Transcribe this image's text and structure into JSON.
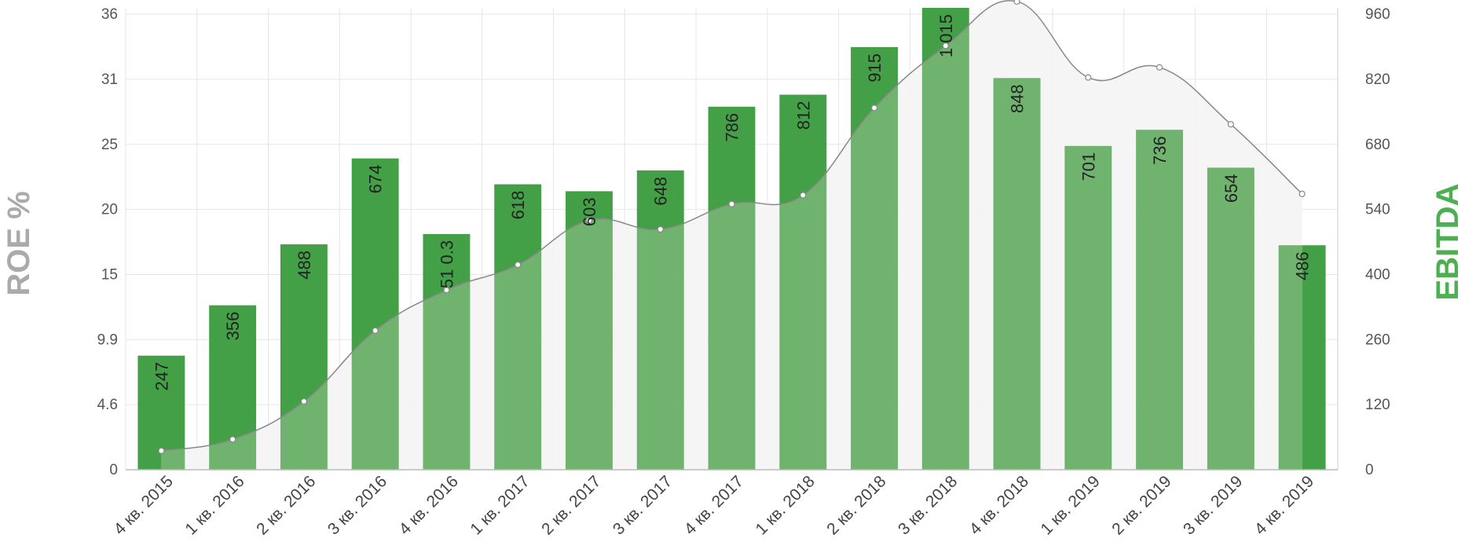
{
  "chart_data": {
    "type": "bar",
    "categories": [
      "4 кв. 2015",
      "1 кв. 2016",
      "2 кв. 2016",
      "3 кв. 2016",
      "4 кв. 2016",
      "1 кв. 2017",
      "2 кв. 2017",
      "3 кв. 2017",
      "4 кв. 2017",
      "1 кв. 2018",
      "2 кв. 2018",
      "3 кв. 2018",
      "4 кв. 2018",
      "1 кв. 2019",
      "2 кв. 2019",
      "3 кв. 2019",
      "4 кв. 2019"
    ],
    "series": [
      {
        "name": "EBITDA",
        "type": "bar",
        "axis": "right",
        "values": [
          247,
          356,
          488,
          674,
          510.3,
          618,
          603,
          648,
          786,
          812,
          915,
          1015,
          848,
          701,
          736,
          654,
          486
        ],
        "labels": [
          "247",
          "356",
          "488",
          "674",
          "51 0.3",
          "618",
          "603",
          "648",
          "786",
          "812",
          "915",
          "1 015",
          "848",
          "701",
          "736",
          "654",
          "486"
        ]
      },
      {
        "name": "ROE %",
        "type": "area",
        "axis": "left",
        "values": [
          1.5,
          2.4,
          5.4,
          11.0,
          14.2,
          16.2,
          19.7,
          19.0,
          21.0,
          21.7,
          28.6,
          33.5,
          37.0,
          31.0,
          31.8,
          27.3,
          21.8
        ]
      }
    ],
    "ylabel": "ROE %",
    "y2label": "EBITDA",
    "yticks": [
      "0",
      "4.6",
      "9.9",
      "15",
      "20",
      "25",
      "31",
      "36"
    ],
    "y2ticks": [
      "0",
      "120",
      "260",
      "400",
      "540",
      "680",
      "820",
      "960"
    ],
    "ylim": [
      0,
      36.5
    ],
    "y2lim": [
      0,
      1000
    ],
    "grid": true,
    "colors": {
      "bar": "#43a047",
      "bar_overlap": "#6fb36f",
      "area_fill": "#f4f4f5",
      "line": "#888888",
      "grid": "#e6e6e6",
      "axis_title_left": "#aaaaaa",
      "axis_title_right": "#4caf50"
    }
  }
}
